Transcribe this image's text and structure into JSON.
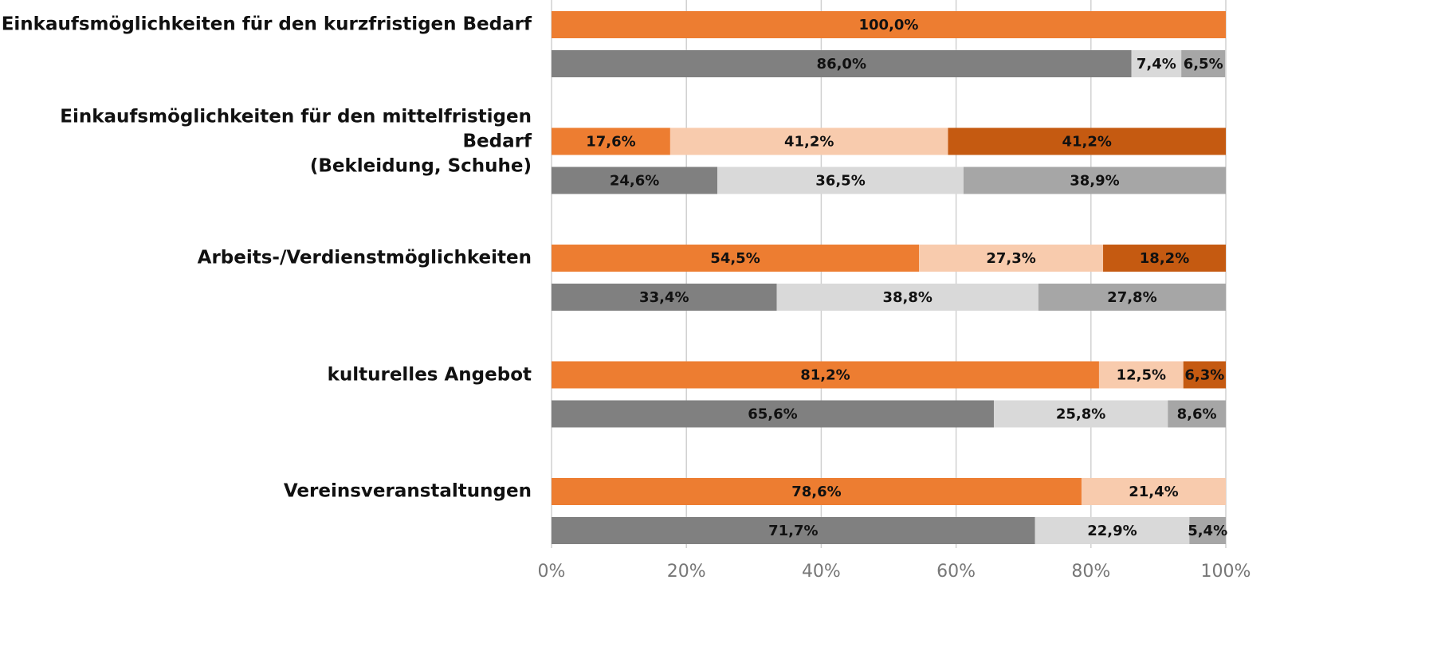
{
  "chart_data": {
    "type": "stacked-bar-pairs",
    "categories": [
      "Einkaufsmöglichkeiten für den kurzfristigen Bedarf",
      "Einkaufsmöglichkeiten für den mittelfristigen Bedarf\n(Bekleidung, Schuhe)",
      "Arbeits-/Verdienstmöglichkeiten",
      "kulturelles Angebot",
      "Vereinsveranstaltungen"
    ],
    "stacks": [
      {
        "series": [
          {
            "color": "#ed7d31",
            "values": [
              100.0,
              17.6,
              54.5,
              81.2,
              78.6
            ],
            "value_labels": [
              "100,0%",
              "17,6%",
              "54,5%",
              "81,2%",
              "78,6%"
            ]
          },
          {
            "color": "#f8cbad",
            "values": [
              null,
              41.2,
              27.3,
              12.5,
              21.4
            ],
            "value_labels": [
              null,
              "41,2%",
              "27,3%",
              "12,5%",
              "21,4%"
            ]
          },
          {
            "color": "#c55a11",
            "values": [
              null,
              41.2,
              18.2,
              6.3,
              null
            ],
            "value_labels": [
              null,
              "41,2%",
              "18,2%",
              "6,3%",
              null
            ]
          }
        ]
      },
      {
        "series": [
          {
            "color": "#808080",
            "values": [
              86.0,
              24.6,
              33.4,
              65.6,
              71.7
            ],
            "value_labels": [
              "86,0%",
              "24,6%",
              "33,4%",
              "65,6%",
              "71,7%"
            ]
          },
          {
            "color": "#d9d9d9",
            "values": [
              7.4,
              36.5,
              38.8,
              25.8,
              22.9
            ],
            "value_labels": [
              "7,4%",
              "36,5%",
              "38,8%",
              "25,8%",
              "22,9%"
            ]
          },
          {
            "color": "#a6a6a6",
            "values": [
              6.5,
              38.9,
              27.8,
              8.6,
              5.4
            ],
            "value_labels": [
              "6,5%",
              "38,9%",
              "27,8%",
              "8,6%",
              "5,4%"
            ]
          }
        ]
      }
    ],
    "xlim": [
      0,
      100
    ],
    "xticks": [
      {
        "value": 0,
        "label": "0%"
      },
      {
        "value": 20,
        "label": "20%"
      },
      {
        "value": 40,
        "label": "40%"
      },
      {
        "value": 60,
        "label": "60%"
      },
      {
        "value": 80,
        "label": "80%"
      },
      {
        "value": 100,
        "label": "100%"
      }
    ],
    "grid": true
  }
}
